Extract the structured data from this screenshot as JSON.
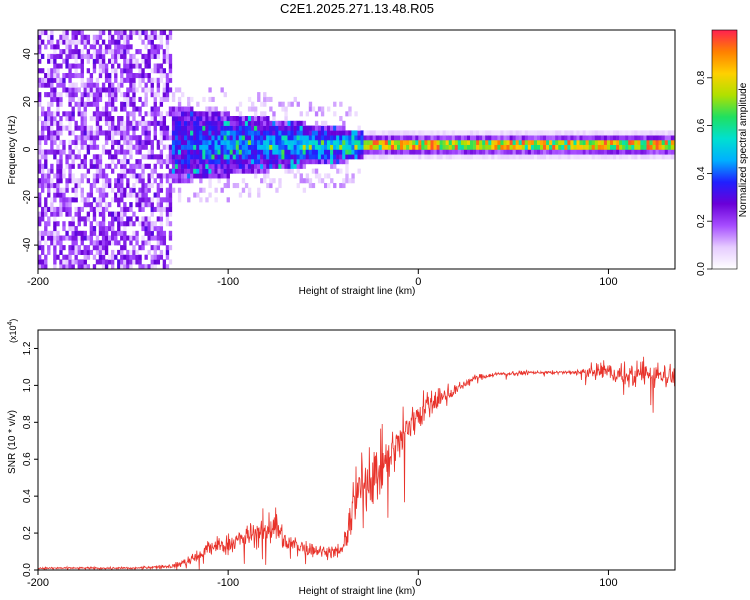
{
  "title": "C2E1.2025.271.13.48.R05",
  "colors": {
    "snr_line": "#e8322a",
    "colormap": [
      "#ffffff",
      "#e6ccff",
      "#a64dff",
      "#6a00d8",
      "#2020ff",
      "#00b0ff",
      "#00e0d0",
      "#20e060",
      "#b0e000",
      "#ffd000",
      "#ff8000",
      "#ff2050"
    ]
  },
  "chart_data": [
    {
      "type": "heatmap",
      "title": "C2E1.2025.271.13.48.R05",
      "xlabel": "Height of straight line (km)",
      "ylabel": "Frequency (Hz)",
      "xlim": [
        -200,
        135
      ],
      "ylim": [
        -50,
        50
      ],
      "xticks": [
        -200,
        -100,
        0,
        100
      ],
      "yticks": [
        -40,
        -20,
        0,
        20,
        40
      ],
      "colorbar": {
        "label": "Normalized spectral amplitude",
        "range": [
          0.0,
          1.0
        ],
        "ticks": [
          0.0,
          0.2,
          0.4,
          0.6,
          0.8
        ]
      },
      "features": {
        "noise_region_x": [
          -200,
          -130
        ],
        "noise_band_halfwidth_hz": 50,
        "transition_region_x": [
          -130,
          -30
        ],
        "tonal_line_x": [
          -30,
          135
        ],
        "tonal_line_frequency_hz": 1,
        "tonal_line_amplitude": 0.9
      }
    },
    {
      "type": "line",
      "xlabel": "Height of straight line (km)",
      "ylabel": "SNR (10 * v/v)",
      "yscale_label": "(x10",
      "yscale_exponent": "4",
      "yscale_suffix": ")",
      "xlim": [
        -200,
        135
      ],
      "ylim": [
        0.0,
        1.3
      ],
      "xticks": [
        -200,
        -100,
        0,
        100
      ],
      "yticks": [
        0.0,
        0.2,
        0.4,
        0.6,
        0.8,
        1.0,
        1.2
      ],
      "series": [
        {
          "name": "SNR",
          "x": [
            -200,
            -150,
            -130,
            -120,
            -110,
            -100,
            -90,
            -80,
            -75,
            -70,
            -60,
            -50,
            -40,
            -35,
            -30,
            -25,
            -20,
            -10,
            0,
            10,
            20,
            30,
            40,
            60,
            80,
            100,
            110,
            120,
            135
          ],
          "y": [
            0.01,
            0.01,
            0.02,
            0.05,
            0.12,
            0.14,
            0.18,
            0.22,
            0.25,
            0.15,
            0.12,
            0.1,
            0.1,
            0.3,
            0.45,
            0.5,
            0.55,
            0.7,
            0.85,
            0.92,
            0.98,
            1.04,
            1.06,
            1.07,
            1.07,
            1.08,
            1.05,
            1.07,
            1.05
          ],
          "noise_amplitude": [
            0.01,
            0.01,
            0.02,
            0.05,
            0.08,
            0.1,
            0.12,
            0.16,
            0.2,
            0.1,
            0.08,
            0.06,
            0.08,
            0.25,
            0.3,
            0.3,
            0.28,
            0.22,
            0.18,
            0.12,
            0.05,
            0.03,
            0.02,
            0.015,
            0.015,
            0.1,
            0.12,
            0.12,
            0.12
          ]
        }
      ]
    }
  ]
}
